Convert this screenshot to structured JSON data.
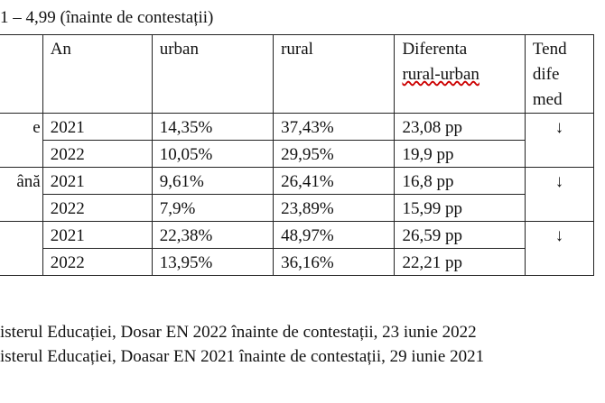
{
  "title": "1 – 4,99 (înainte de contestații)",
  "table": {
    "header": [
      [
        "An"
      ],
      [
        "urban"
      ],
      [
        "rural"
      ],
      [
        "Diferenta",
        "rural-urban"
      ],
      [
        "Tend",
        "dife",
        "med"
      ]
    ],
    "groups": [
      {
        "label": "e",
        "trend": "↓",
        "rows": [
          [
            "2021",
            "14,35%",
            "37,43%",
            "23,08 pp"
          ],
          [
            "2022",
            "10,05%",
            "29,95%",
            "19,9 pp"
          ]
        ]
      },
      {
        "label": "ână",
        "trend": "↓",
        "rows": [
          [
            "2021",
            "9,61%",
            "26,41%",
            "16,8 pp"
          ],
          [
            "2022",
            "7,9%",
            "23,89%",
            "15,99 pp"
          ]
        ]
      },
      {
        "trend": "↓",
        "rows": [
          [
            "2021",
            "22,38%",
            "48,97%",
            "26,59 pp"
          ],
          [
            "2022",
            "13,95%",
            "36,16%",
            "22,21 pp"
          ]
        ]
      }
    ]
  },
  "footnotes": [
    "isterul Educației, Dosar EN 2022 înainte de contestații, 23 iunie 2022",
    "isterul Educației, Doasar EN 2021 înainte de contestații, 29 iunie 2021"
  ]
}
